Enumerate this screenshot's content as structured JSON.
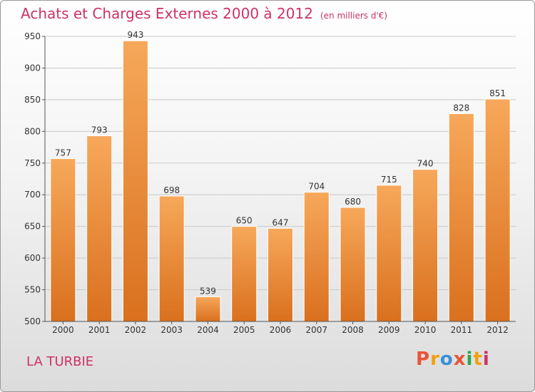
{
  "title": "Achats et Charges Externes 2000 à 2012",
  "subtitle": "(en milliers d'€)",
  "place": "LA TURBIE",
  "logo": {
    "text": "Proxiti",
    "colors": [
      "#e8543a",
      "#f0a010",
      "#3a8fd8",
      "#e8543a",
      "#2aa84a",
      "#f0a010",
      "#cc3366"
    ]
  },
  "colors": {
    "title": "#cc3366",
    "bar_top": "#f7a85a",
    "bar_bottom": "#d9701e"
  },
  "chart_data": {
    "type": "bar",
    "title": "Achats et Charges Externes 2000 à 2012",
    "subtitle": "(en milliers d'€)",
    "xlabel": "",
    "ylabel": "",
    "categories": [
      "2000",
      "2001",
      "2002",
      "2003",
      "2004",
      "2005",
      "2006",
      "2007",
      "2008",
      "2009",
      "2010",
      "2011",
      "2012"
    ],
    "values": [
      757,
      793,
      943,
      698,
      539,
      650,
      647,
      704,
      680,
      715,
      740,
      828,
      851
    ],
    "ylim": [
      500,
      950
    ],
    "yticks": [
      500,
      550,
      600,
      650,
      700,
      750,
      800,
      850,
      900,
      950
    ],
    "grid": true,
    "legend": "none"
  }
}
